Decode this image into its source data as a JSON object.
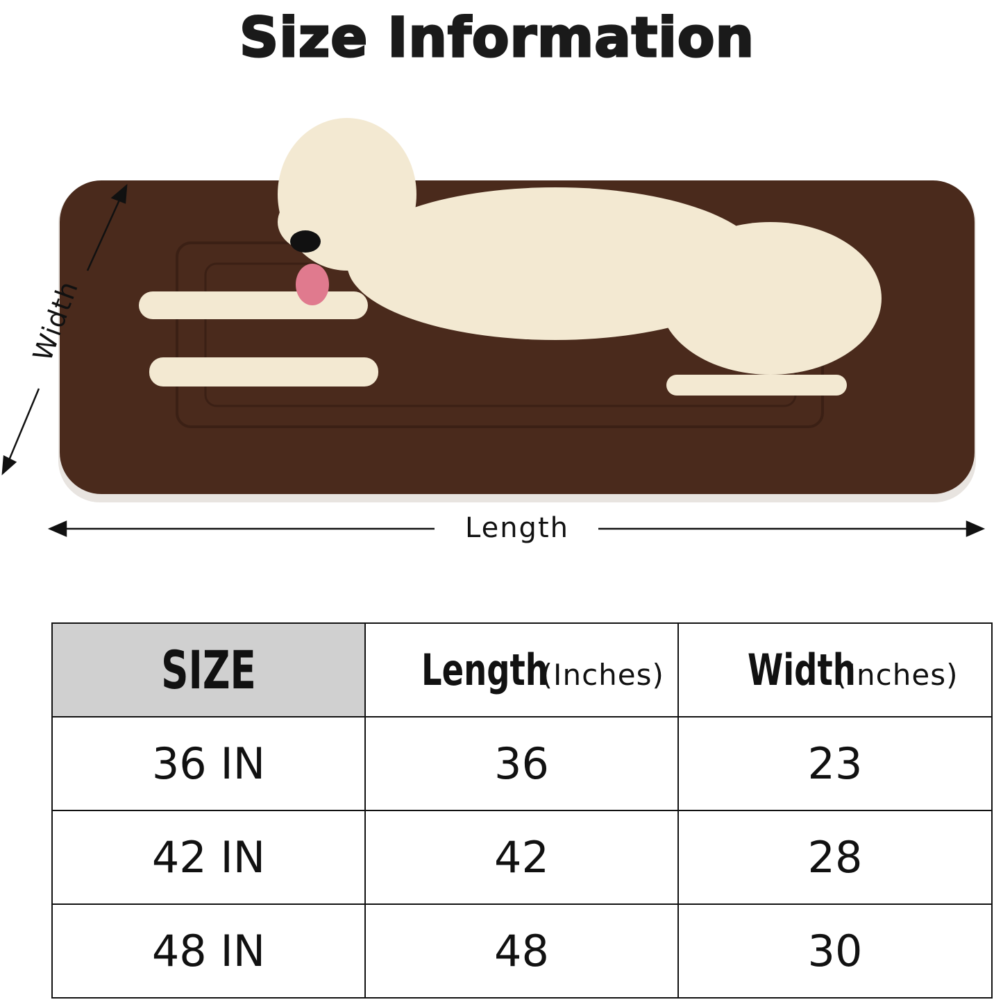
{
  "title": "Size Information",
  "dimension_labels": {
    "width": "Width",
    "length": "Length"
  },
  "colors": {
    "mat": "#4a2a1c",
    "header_bg": "#d0d0d0",
    "dog": "#f3e9d2"
  },
  "table": {
    "headers": [
      {
        "main": "SIZE",
        "unit": ""
      },
      {
        "main": "Length",
        "unit": "(Inches)"
      },
      {
        "main": "Width",
        "unit": "(Inches)"
      }
    ],
    "rows": [
      [
        "36 IN",
        "36",
        "23"
      ],
      [
        "42 IN",
        "42",
        "28"
      ],
      [
        "48 IN",
        "48",
        "30"
      ]
    ]
  }
}
